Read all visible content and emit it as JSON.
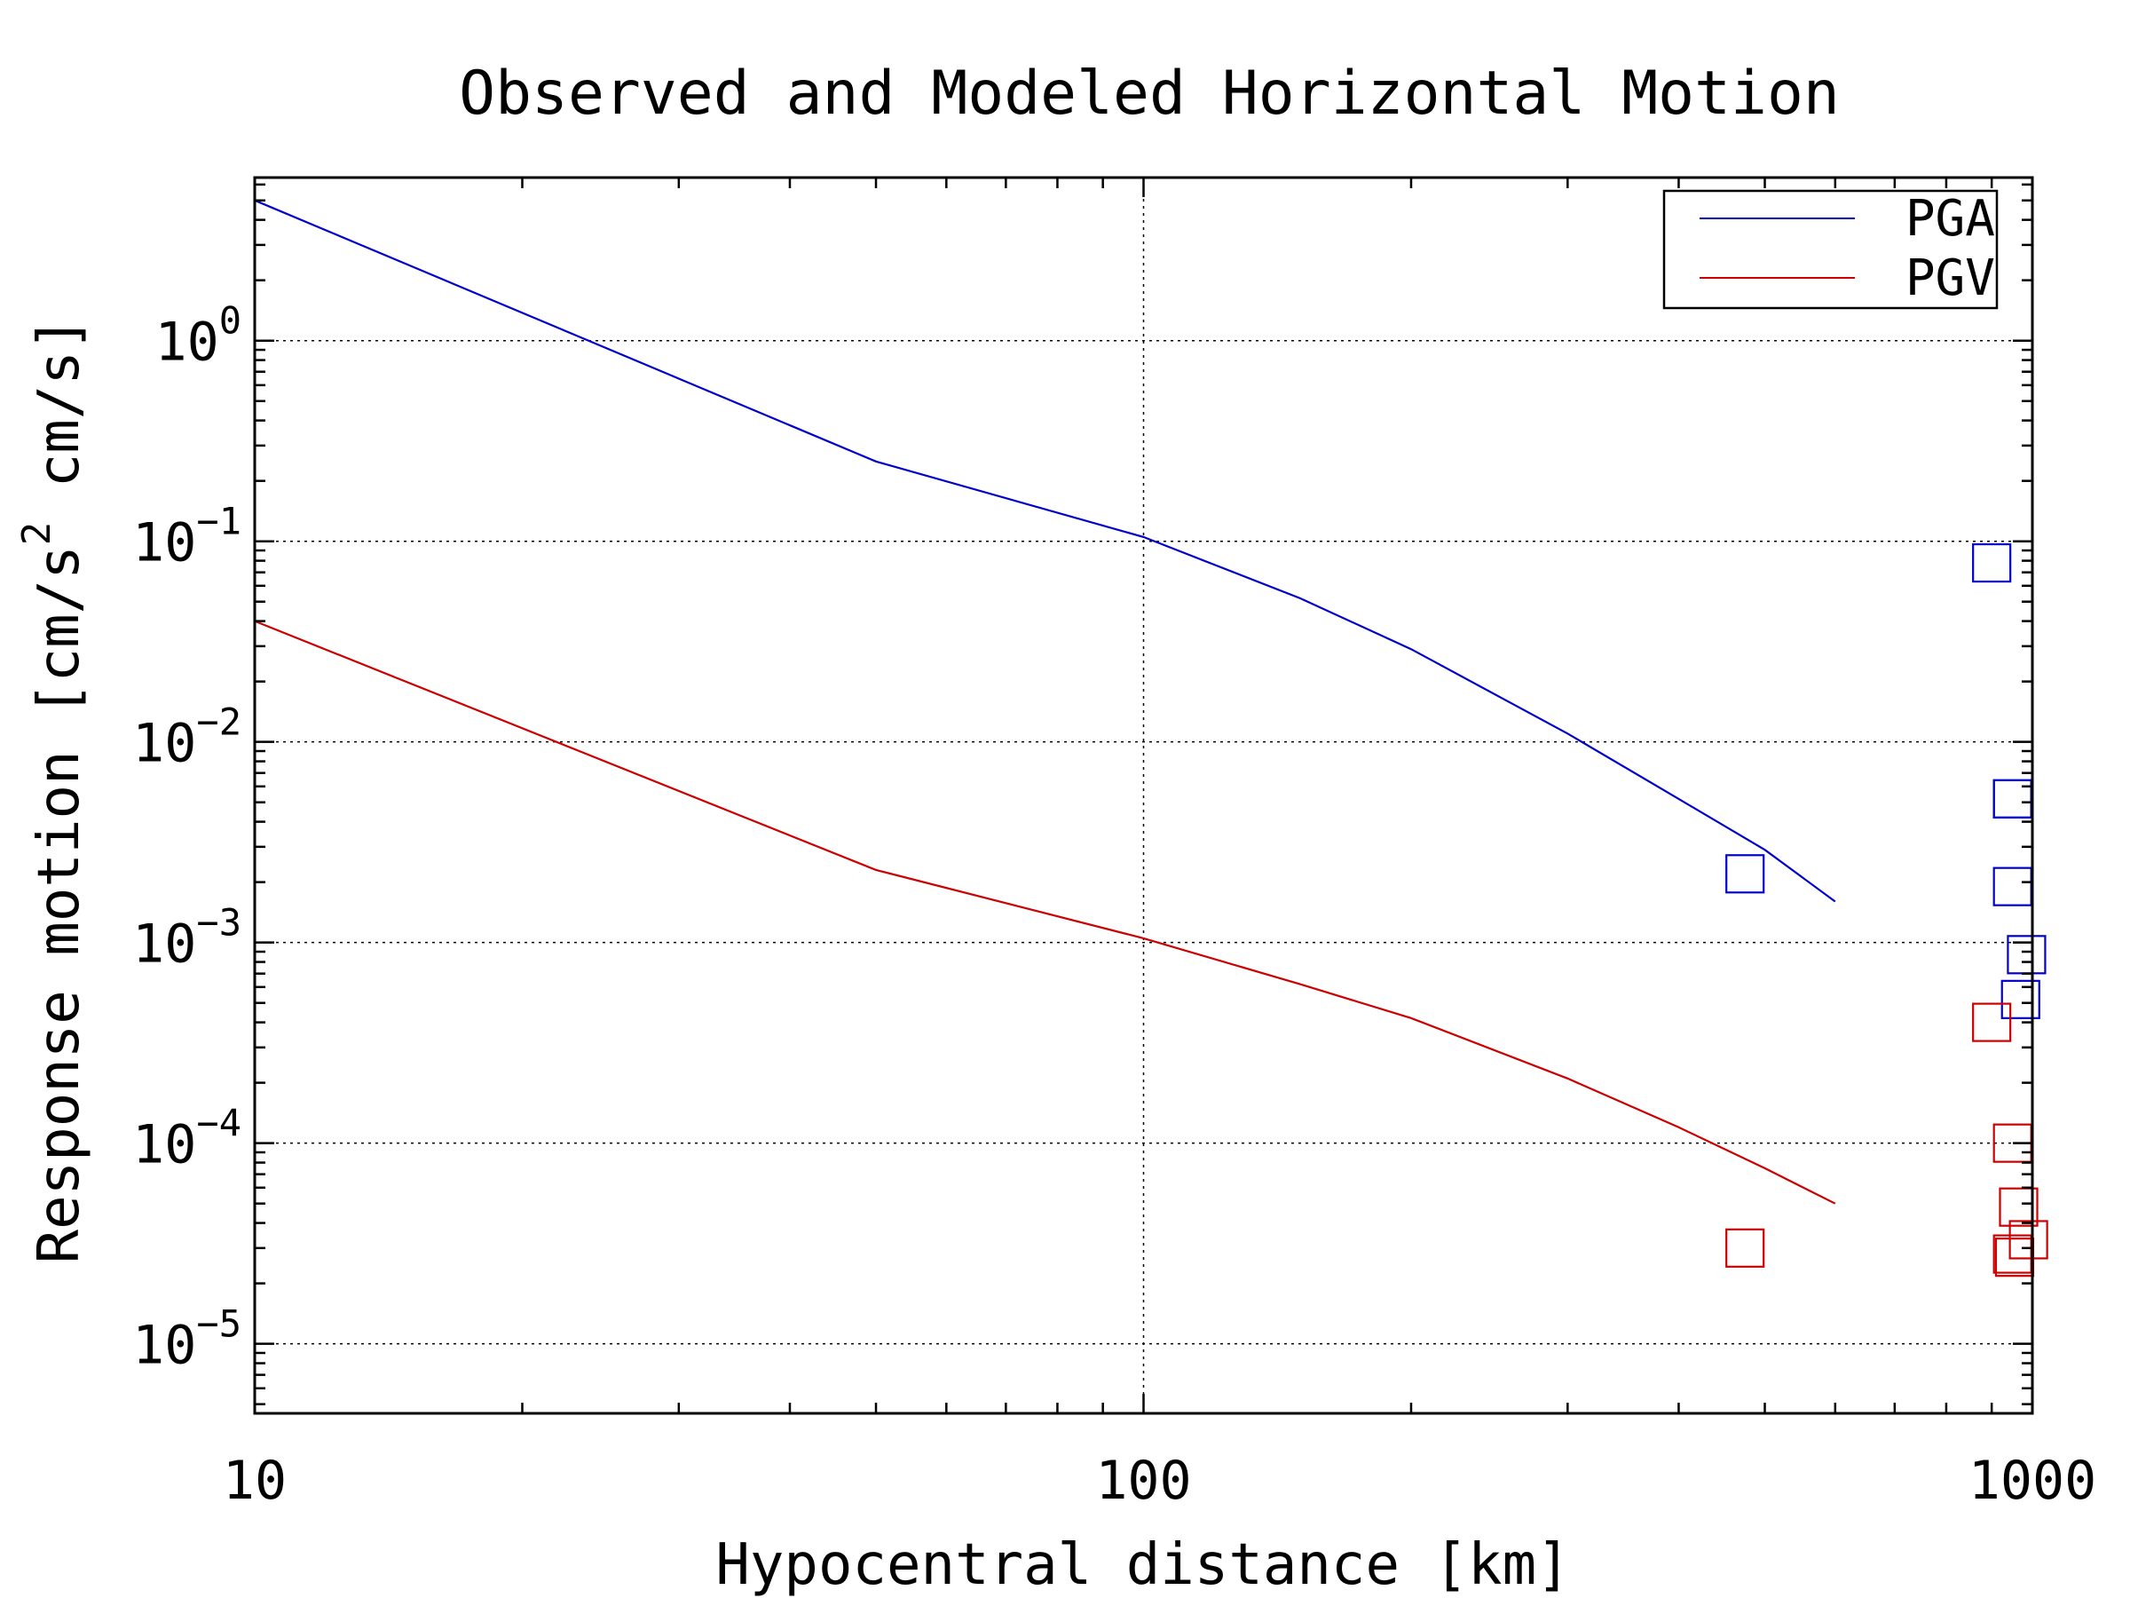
{
  "chart_data": {
    "type": "line",
    "title": "Observed and Modeled Horizontal Motion",
    "xlabel": "Hypocentral distance [km]",
    "ylabel_parts": [
      "Response motion [cm/s",
      "2",
      " cm/s]"
    ],
    "x_scale": "log",
    "y_scale": "log",
    "xlim": [
      10,
      1000
    ],
    "ylim": [
      4.5e-06,
      6.5
    ],
    "x_ticks": [
      {
        "value": 10,
        "label": "10"
      },
      {
        "value": 100,
        "label": "100"
      },
      {
        "value": 1000,
        "label": "1000"
      }
    ],
    "y_ticks": [
      {
        "value": 1,
        "base": "10",
        "exp": "0"
      },
      {
        "value": 0.1,
        "base": "10",
        "exp": "−1"
      },
      {
        "value": 0.01,
        "base": "10",
        "exp": "−2"
      },
      {
        "value": 0.001,
        "base": "10",
        "exp": "−3"
      },
      {
        "value": 0.0001,
        "base": "10",
        "exp": "−4"
      },
      {
        "value": 1e-05,
        "base": "10",
        "exp": "−5"
      }
    ],
    "grid": true,
    "legend_position": "top-right",
    "series": [
      {
        "name": "PGA",
        "color": "#0000cc",
        "kind": "line",
        "x": [
          10,
          50,
          100,
          150,
          200,
          300,
          400,
          500,
          600
        ],
        "y": [
          5.0,
          0.25,
          0.105,
          0.052,
          0.029,
          0.011,
          0.0052,
          0.0029,
          0.0016
        ]
      },
      {
        "name": "PGV",
        "color": "#cc0000",
        "kind": "line",
        "x": [
          10,
          50,
          100,
          150,
          200,
          300,
          400,
          500,
          600
        ],
        "y": [
          0.04,
          0.0023,
          0.00105,
          0.00062,
          0.00042,
          0.00021,
          0.00012,
          7.5e-05,
          5e-05
        ]
      },
      {
        "name": "",
        "color": "#0000cc",
        "kind": "markers",
        "x": [
          475,
          900,
          950,
          950,
          985,
          970,
          950
        ],
        "y": [
          0.0022,
          0.078,
          0.0052,
          0.0019,
          0.00087,
          0.00052,
          0.0052
        ]
      },
      {
        "name": "",
        "color": "#cc0000",
        "kind": "markers",
        "x": [
          475,
          900,
          950,
          965,
          990,
          950,
          955
        ],
        "y": [
          3e-05,
          0.0004,
          0.0001,
          4.8e-05,
          3.3e-05,
          2.8e-05,
          2.7e-05
        ]
      }
    ]
  }
}
